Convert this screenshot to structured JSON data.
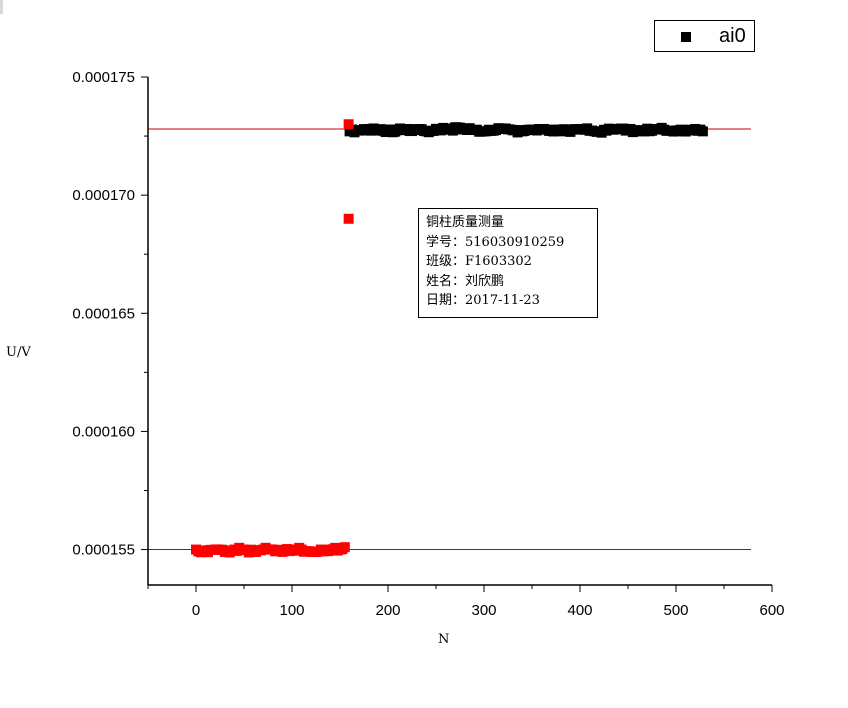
{
  "chart_data": {
    "type": "scatter",
    "xlabel": "N",
    "ylabel": "U/V",
    "xlim": [
      -50,
      600
    ],
    "ylim": [
      0.0001535,
      0.000175
    ],
    "x_ticks": [
      "0",
      "100",
      "200",
      "300",
      "400",
      "500",
      "600"
    ],
    "y_ticks": [
      "0.000155",
      "0.000160",
      "0.000165",
      "0.000170",
      "0.000175"
    ],
    "grid": false,
    "legend": {
      "position": "top-right",
      "label": "ai0"
    },
    "series": [
      {
        "name": "ai0",
        "color": "#000000",
        "marker": "square",
        "x": [
          160,
          180,
          200,
          220,
          240,
          260,
          280,
          300,
          320,
          340,
          360,
          380,
          400,
          420,
          440,
          460,
          480,
          500,
          520,
          528
        ],
        "values": [
          0.0001727,
          0.0001728,
          0.0001727,
          0.0001728,
          0.0001727,
          0.0001728,
          0.0001728,
          0.0001727,
          0.0001728,
          0.0001727,
          0.0001728,
          0.0001727,
          0.0001728,
          0.0001727,
          0.0001728,
          0.0001727,
          0.0001728,
          0.0001727,
          0.0001728,
          0.0001727
        ]
      },
      {
        "color": "#ff0000",
        "marker": "square",
        "x": [
          0,
          10,
          20,
          30,
          40,
          50,
          60,
          70,
          80,
          90,
          100,
          110,
          120,
          130,
          140,
          150,
          155,
          159,
          159
        ],
        "values": [
          0.000155,
          0.0001549,
          0.000155,
          0.0001549,
          0.000155,
          0.000155,
          0.0001549,
          0.000155,
          0.000155,
          0.0001549,
          0.000155,
          0.000155,
          0.0001549,
          0.000155,
          0.000155,
          0.000155,
          0.0001551,
          0.000169,
          0.000173
        ]
      }
    ],
    "reference_lines": [
      {
        "color": "#cc0000",
        "y": 0.0001728
      },
      {
        "color": "#cc0000",
        "y": 0.000155
      }
    ],
    "annotation": [
      "铜柱质量测量",
      "学号：516030910259",
      "班级：F1603302",
      "姓名：刘欣鹏",
      "日期：2017-11-23"
    ]
  }
}
